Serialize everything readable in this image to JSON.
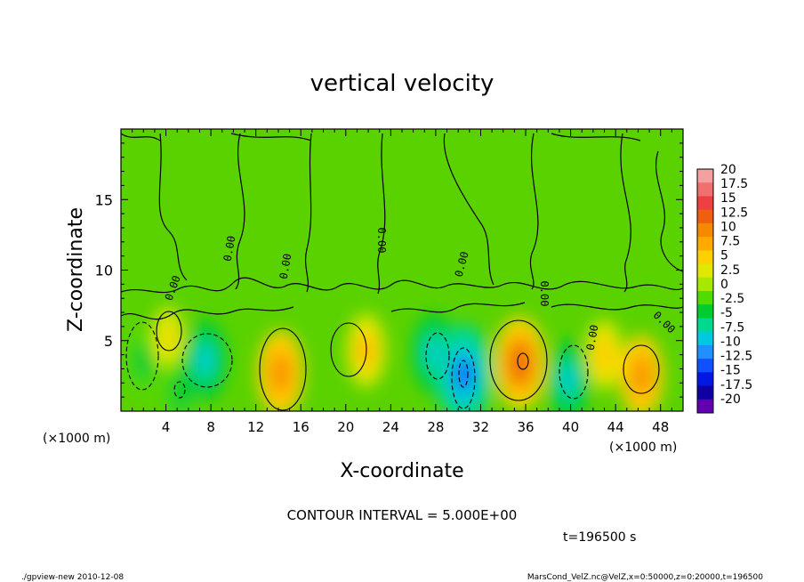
{
  "chart_data": {
    "type": "heatmap",
    "title": "vertical velocity",
    "xlabel": "X-coordinate",
    "ylabel": "Z-coordinate",
    "x_unit": "(×1000 m)",
    "z_unit": "(×1000 m)",
    "xlim": [
      0,
      50
    ],
    "ylim": [
      0,
      20
    ],
    "x_ticks": [
      4,
      8,
      12,
      16,
      20,
      24,
      28,
      32,
      36,
      40,
      44,
      48
    ],
    "y_ticks": [
      5,
      10,
      15
    ],
    "colorbar": {
      "labels": [
        "20",
        "17.5",
        "15",
        "12.5",
        "10",
        "7.5",
        "5",
        "2.5",
        "0",
        "-2.5",
        "-5",
        "-7.5",
        "-10",
        "-12.5",
        "-15",
        "-17.5",
        "-20"
      ],
      "colors": [
        "#f5a0a0",
        "#f07070",
        "#ee4040",
        "#ee6010",
        "#f58a00",
        "#ffaa00",
        "#ffd000",
        "#e0e800",
        "#a8e800",
        "#50dc00",
        "#00cc30",
        "#00d890",
        "#00c8e0",
        "#2090ff",
        "#1050ff",
        "#0018e0",
        "#1000a0",
        "#6000b0"
      ]
    },
    "contour_labels": [
      "0.00",
      "0.00",
      "0.00",
      "0.00",
      "0.00",
      "0.00",
      "0.00",
      "0.00"
    ],
    "cells": [
      {
        "x": 2.0,
        "z": 3.5,
        "w": -5
      },
      {
        "x": 4.2,
        "z": 5.2,
        "w": 4
      },
      {
        "x": 5.3,
        "z": 1.3,
        "w": -6
      },
      {
        "x": 7.5,
        "z": 3.6,
        "w": -9
      },
      {
        "x": 14.2,
        "z": 2.7,
        "w": 10
      },
      {
        "x": 21.8,
        "z": 4.3,
        "w": 7
      },
      {
        "x": 27.8,
        "z": 4.1,
        "w": -9
      },
      {
        "x": 30.5,
        "z": 2.6,
        "w": -14
      },
      {
        "x": 35.5,
        "z": 3.4,
        "w": 12
      },
      {
        "x": 39.8,
        "z": 2.2,
        "w": -9
      },
      {
        "x": 43.0,
        "z": 4.0,
        "w": 6
      },
      {
        "x": 46.3,
        "z": 2.5,
        "w": 9
      }
    ],
    "contour_interval_text": "CONTOUR INTERVAL = 5.000E+00",
    "time_text": "t=196500 s"
  },
  "footer": {
    "left": "./gpview-new  2010-12-08",
    "right": "MarsCond_VelZ.nc@VelZ,x=0:50000,z=0:20000,t=196500"
  }
}
